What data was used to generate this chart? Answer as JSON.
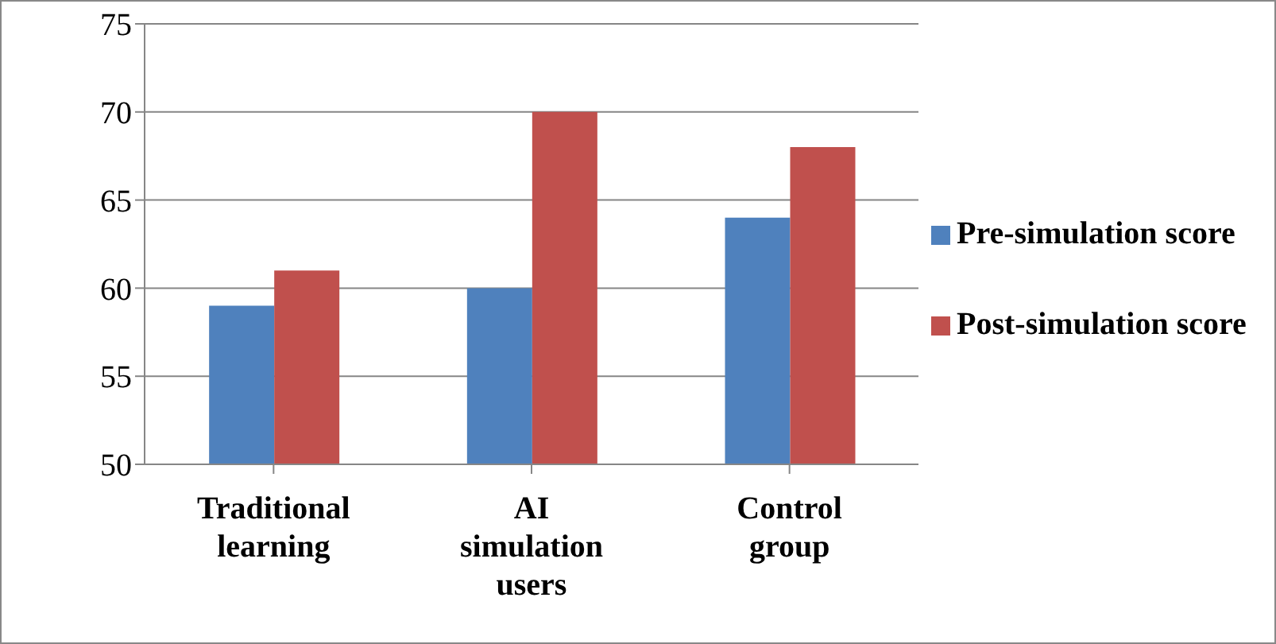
{
  "chart_data": {
    "type": "bar",
    "categories": [
      "Traditional learning",
      "AI simulation users",
      "Control group"
    ],
    "series": [
      {
        "name": "Pre-simulation score",
        "color": "#4f81bd",
        "values": [
          59,
          60,
          64
        ]
      },
      {
        "name": "Post-simulation score",
        "color": "#c0504d",
        "values": [
          61,
          70,
          68
        ]
      }
    ],
    "ylim": [
      50,
      75
    ],
    "yticks": [
      50,
      55,
      60,
      65,
      70,
      75
    ],
    "grid": "y",
    "legend": "right"
  }
}
